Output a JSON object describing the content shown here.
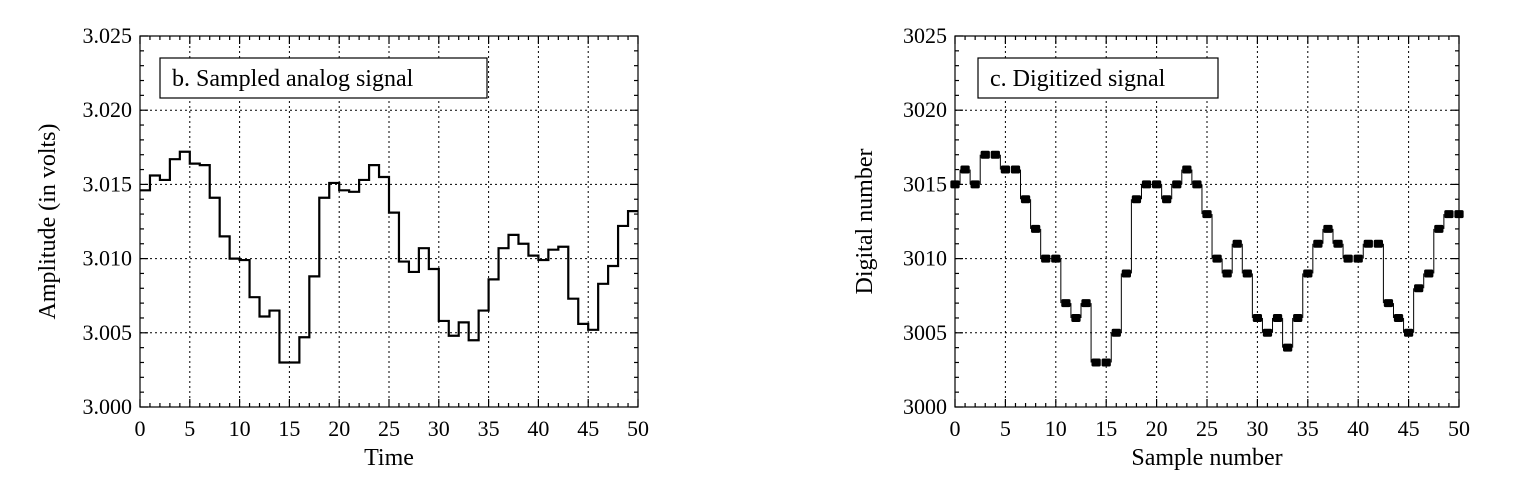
{
  "chart_data": [
    {
      "type": "line",
      "title": "b. Sampled analog signal",
      "xlabel": "Time",
      "ylabel": "Amplitude (in volts)",
      "xlim": [
        0,
        50
      ],
      "ylim": [
        3.0,
        3.025
      ],
      "x_ticks": [
        0,
        5,
        10,
        15,
        20,
        25,
        30,
        35,
        40,
        45,
        50
      ],
      "y_ticks": [
        3.0,
        3.005,
        3.01,
        3.015,
        3.02,
        3.025
      ],
      "y_tick_labels": [
        "3.000",
        "3.005",
        "3.010",
        "3.015",
        "3.020",
        "3.025"
      ],
      "grid": true,
      "step": true,
      "x": [
        0,
        1,
        2,
        3,
        4,
        5,
        6,
        7,
        8,
        9,
        10,
        11,
        12,
        13,
        14,
        15,
        16,
        17,
        18,
        19,
        20,
        21,
        22,
        23,
        24,
        25,
        26,
        27,
        28,
        29,
        30,
        31,
        32,
        33,
        34,
        35,
        36,
        37,
        38,
        39,
        40,
        41,
        42,
        43,
        44,
        45,
        46,
        47,
        48,
        49
      ],
      "values": [
        3.0146,
        3.0156,
        3.0153,
        3.0167,
        3.0172,
        3.0164,
        3.0163,
        3.0141,
        3.0115,
        3.01,
        3.0099,
        3.0074,
        3.0061,
        3.0065,
        3.003,
        3.003,
        3.0047,
        3.0088,
        3.0141,
        3.0151,
        3.0146,
        3.0145,
        3.0153,
        3.0163,
        3.0155,
        3.0131,
        3.0098,
        3.0091,
        3.0107,
        3.0093,
        3.0058,
        3.0048,
        3.0057,
        3.0045,
        3.0065,
        3.0086,
        3.0107,
        3.0116,
        3.011,
        3.0102,
        3.0099,
        3.0106,
        3.0108,
        3.0073,
        3.0056,
        3.0052,
        3.0083,
        3.0095,
        3.0122,
        3.0132
      ]
    },
    {
      "type": "scatter",
      "title": "c. Digitized signal",
      "xlabel": "Sample number",
      "ylabel": "Digital number",
      "xlim": [
        0,
        50
      ],
      "ylim": [
        3000,
        3025
      ],
      "x_ticks": [
        0,
        5,
        10,
        15,
        20,
        25,
        30,
        35,
        40,
        45,
        50
      ],
      "y_ticks": [
        3000,
        3005,
        3010,
        3015,
        3020,
        3025
      ],
      "y_tick_labels": [
        "3000",
        "3005",
        "3010",
        "3015",
        "3020",
        "3025"
      ],
      "grid": true,
      "x": [
        0,
        1,
        2,
        3,
        4,
        5,
        6,
        7,
        8,
        9,
        10,
        11,
        12,
        13,
        14,
        15,
        16,
        17,
        18,
        19,
        20,
        21,
        22,
        23,
        24,
        25,
        26,
        27,
        28,
        29,
        30,
        31,
        32,
        33,
        34,
        35,
        36,
        37,
        38,
        39,
        40,
        41,
        42,
        43,
        44,
        45,
        46,
        47,
        48,
        49,
        50
      ],
      "values": [
        3015,
        3016,
        3015,
        3017,
        3017,
        3016,
        3016,
        3014,
        3012,
        3010,
        3010,
        3007,
        3006,
        3007,
        3003,
        3003,
        3005,
        3009,
        3014,
        3015,
        3015,
        3014,
        3015,
        3016,
        3015,
        3013,
        3010,
        3009,
        3011,
        3009,
        3006,
        3005,
        3006,
        3004,
        3006,
        3009,
        3011,
        3012,
        3011,
        3010,
        3010,
        3011,
        3011,
        3007,
        3006,
        3005,
        3008,
        3009,
        3012,
        3013,
        3013
      ]
    }
  ]
}
